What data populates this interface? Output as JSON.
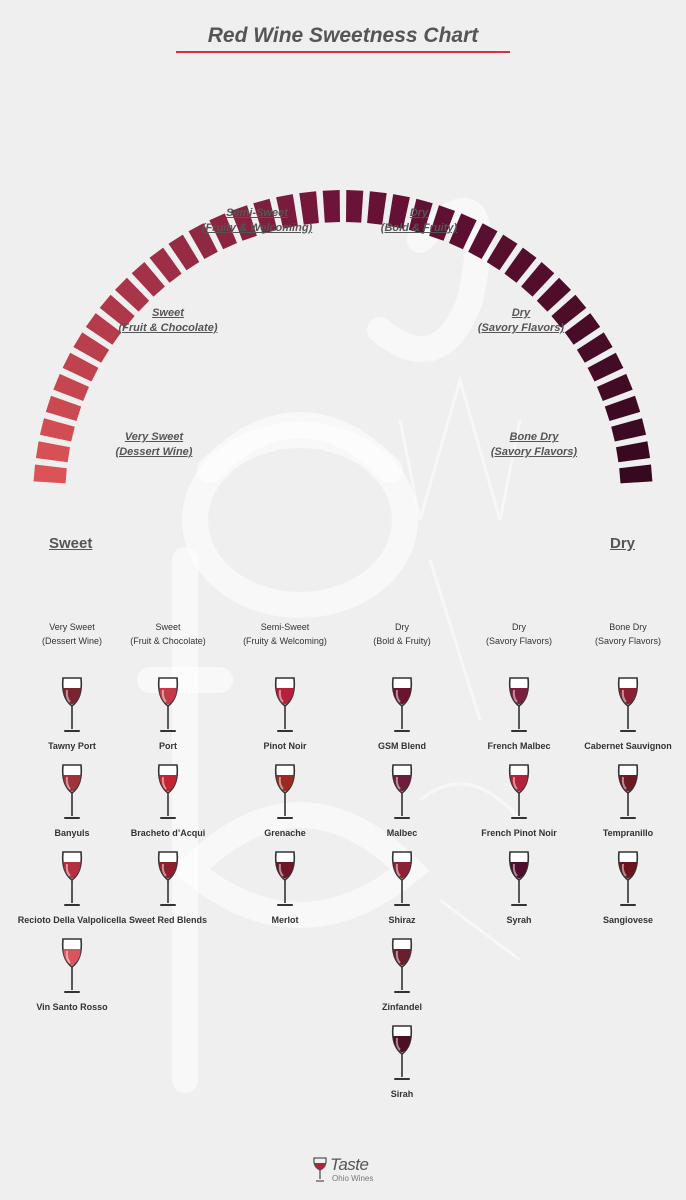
{
  "title": "Red Wine Sweetness Chart",
  "arc": {
    "left_color": "#dc5356",
    "mid_color": "#6c1238",
    "right_color": "#36091f",
    "labels": [
      {
        "line1": "Very Sweet",
        "line2": "(Dessert Wine)"
      },
      {
        "line1": "Sweet",
        "line2": "(Fruit & Chocolate)"
      },
      {
        "line1": "Semi-Sweet",
        "line2": "(Fruity & Welcoming)"
      },
      {
        "line1": "Dry",
        "line2": "(Bold & Fruity)"
      },
      {
        "line1": "Dry",
        "line2": "(Savory Flavors)"
      },
      {
        "line1": "Bone Dry",
        "line2": "(Savory Flavors)"
      }
    ],
    "sweet_label": "Sweet",
    "dry_label": "Dry"
  },
  "columns": [
    {
      "line1": "Very Sweet",
      "line2": "(Dessert Wine)",
      "wines": [
        {
          "name": "Tawny Port",
          "color": "#7a2430"
        },
        {
          "name": "Banyuls",
          "color": "#a0323a"
        },
        {
          "name": "Recioto Della Valpolicella",
          "color": "#b2303f"
        },
        {
          "name": "Vin Santo Rosso",
          "color": "#d9555d"
        }
      ]
    },
    {
      "line1": "Sweet",
      "line2": "(Fruit & Chocolate)",
      "wines": [
        {
          "name": "Port",
          "color": "#c43a48"
        },
        {
          "name": "Bracheto d’Acqui",
          "color": "#c22434"
        },
        {
          "name": "Sweet Red Blends",
          "color": "#8c1f2e"
        }
      ]
    },
    {
      "line1": "Semi-Sweet",
      "line2": "(Fruity & Welcoming)",
      "wines": [
        {
          "name": "Pinot Noir",
          "color": "#b7203a"
        },
        {
          "name": "Grenache",
          "color": "#9b2a24"
        },
        {
          "name": "Merlot",
          "color": "#6e1627"
        }
      ]
    },
    {
      "line1": "Dry",
      "line2": "(Bold & Fruity)",
      "wines": [
        {
          "name": "GSM Blend",
          "color": "#6a1430"
        },
        {
          "name": "Malbec",
          "color": "#6c1e3c"
        },
        {
          "name": "Shiraz",
          "color": "#8c2236"
        },
        {
          "name": "Zinfandel",
          "color": "#6b1f2e"
        },
        {
          "name": "Sirah",
          "color": "#4e0f22"
        }
      ]
    },
    {
      "line1": "Dry",
      "line2": "(Savory Flavors)",
      "wines": [
        {
          "name": "French Malbec",
          "color": "#7c1f3e"
        },
        {
          "name": "French Pinot Noir",
          "color": "#b3223a"
        },
        {
          "name": "Syrah",
          "color": "#4f0f2c"
        }
      ]
    },
    {
      "line1": "Bone Dry",
      "line2": "(Savory Flavors)",
      "wines": [
        {
          "name": "Cabernet Sauvignon",
          "color": "#8a1f32"
        },
        {
          "name": "Tempranillo",
          "color": "#6e1a22"
        },
        {
          "name": "Sangiovese",
          "color": "#6a1420"
        }
      ]
    }
  ],
  "logo": {
    "main": "Taste",
    "sub": "Ohio Wines"
  }
}
